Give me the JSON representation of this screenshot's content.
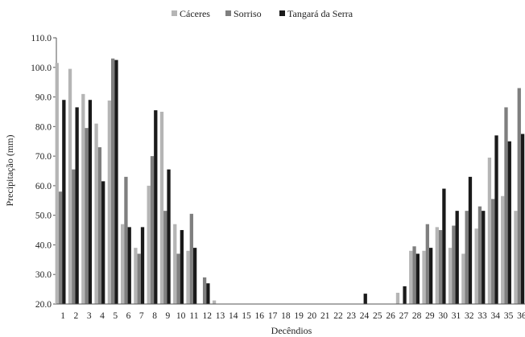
{
  "chart_data": {
    "type": "bar",
    "xlabel": "Decêndios",
    "ylabel": "Precipitação (mm)",
    "ylim": [
      20,
      110
    ],
    "yticks": [
      "20.0",
      "30.0",
      "40.0",
      "50.0",
      "60.0",
      "70.0",
      "80.0",
      "90.0",
      "100.0",
      "110.0"
    ],
    "legend_position": "top-center",
    "grid": false,
    "categories": [
      "1",
      "2",
      "3",
      "4",
      "5",
      "6",
      "7",
      "8",
      "9",
      "10",
      "11",
      "12",
      "13",
      "14",
      "15",
      "16",
      "17",
      "18",
      "19",
      "20",
      "21",
      "22",
      "23",
      "24",
      "25",
      "26",
      "27",
      "28",
      "29",
      "30",
      "31",
      "32",
      "33",
      "34",
      "35",
      "36"
    ],
    "series": [
      {
        "name": "Cáceres",
        "color": "#b5b5b5",
        "values": [
          101.5,
          99.5,
          91.0,
          81.0,
          88.8,
          47.0,
          39.0,
          60.0,
          85.0,
          47.0,
          38.0,
          20.0,
          21.2,
          20.0,
          20.0,
          20.0,
          20.0,
          20.0,
          20.0,
          20.0,
          20.0,
          20.0,
          20.0,
          20.0,
          20.0,
          20.0,
          23.8,
          38.0,
          38.0,
          46.0,
          39.0,
          37.0,
          45.5,
          69.5,
          56.5,
          51.5
        ]
      },
      {
        "name": "Sorriso",
        "color": "#7f7f7f",
        "values": [
          58.0,
          65.5,
          79.5,
          73.0,
          103.0,
          63.0,
          37.0,
          70.0,
          51.5,
          37.0,
          50.5,
          29.0,
          20.0,
          20.0,
          20.0,
          20.0,
          20.0,
          20.0,
          20.0,
          20.0,
          20.0,
          20.0,
          20.0,
          20.0,
          20.0,
          20.0,
          20.0,
          39.5,
          47.0,
          45.0,
          46.5,
          51.5,
          53.0,
          55.5,
          86.5,
          93.0
        ]
      },
      {
        "name": "Tangará da Serra",
        "color": "#1a1a1a",
        "values": [
          89.0,
          86.5,
          89.0,
          61.5,
          102.5,
          46.0,
          46.0,
          85.5,
          65.5,
          45.0,
          39.0,
          27.0,
          20.0,
          20.0,
          20.0,
          20.0,
          20.0,
          20.0,
          20.0,
          20.0,
          20.0,
          20.0,
          20.0,
          23.5,
          20.0,
          20.0,
          26.0,
          37.0,
          39.0,
          59.0,
          51.5,
          63.0,
          51.5,
          77.0,
          75.0,
          77.5
        ]
      }
    ]
  }
}
